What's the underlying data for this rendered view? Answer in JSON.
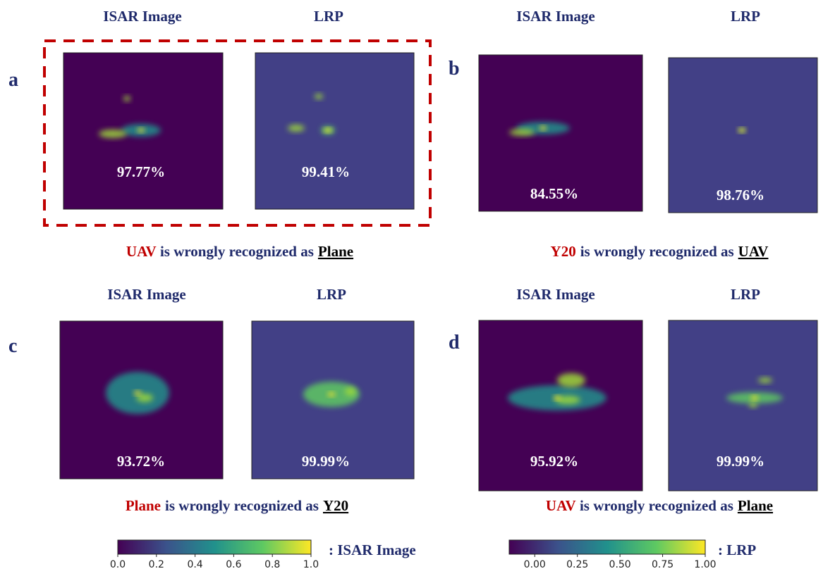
{
  "panels": [
    {
      "letter": "a",
      "headers": [
        "ISAR Image",
        "LRP"
      ],
      "scores": [
        "97.77%",
        "99.41%"
      ],
      "caption": {
        "actual": "UAV",
        "text": "is wrongly recognized as",
        "predicted": "Plane"
      }
    },
    {
      "letter": "b",
      "headers": [
        "ISAR Image",
        "LRP"
      ],
      "scores": [
        "84.55%",
        "98.76%"
      ],
      "caption": {
        "actual": "Y20",
        "text": "is wrongly recognized as",
        "predicted": "UAV"
      }
    },
    {
      "letter": "c",
      "headers": [
        "ISAR Image",
        "LRP"
      ],
      "scores": [
        "93.72%",
        "99.99%"
      ],
      "caption": {
        "actual": "Plane",
        "text": "is wrongly recognized as",
        "predicted": "Y20"
      }
    },
    {
      "letter": "d",
      "headers": [
        "ISAR Image",
        "LRP"
      ],
      "scores": [
        "95.92%",
        "99.99%"
      ],
      "caption": {
        "actual": "UAV",
        "text": "is wrongly recognized as",
        "predicted": "Plane"
      }
    }
  ],
  "colorbars": [
    {
      "label": ": ISAR Image",
      "lim": [
        0,
        1
      ],
      "ticks": [
        {
          "value": 0,
          "label": "0.0"
        },
        {
          "value": 0.2,
          "label": "0.2"
        },
        {
          "value": 0.4,
          "label": "0.4"
        },
        {
          "value": 0.6,
          "label": "0.6"
        },
        {
          "value": 0.8,
          "label": "0.8"
        },
        {
          "value": 1,
          "label": "1.0"
        }
      ]
    },
    {
      "label": ": LRP",
      "lim": [
        -0.15,
        1
      ],
      "ticks": [
        {
          "value": 0,
          "label": "0.00"
        },
        {
          "value": 0.25,
          "label": "0.25"
        },
        {
          "value": 0.5,
          "label": "0.50"
        },
        {
          "value": 0.75,
          "label": "0.75"
        },
        {
          "value": 1,
          "label": "1.00"
        }
      ]
    }
  ]
}
